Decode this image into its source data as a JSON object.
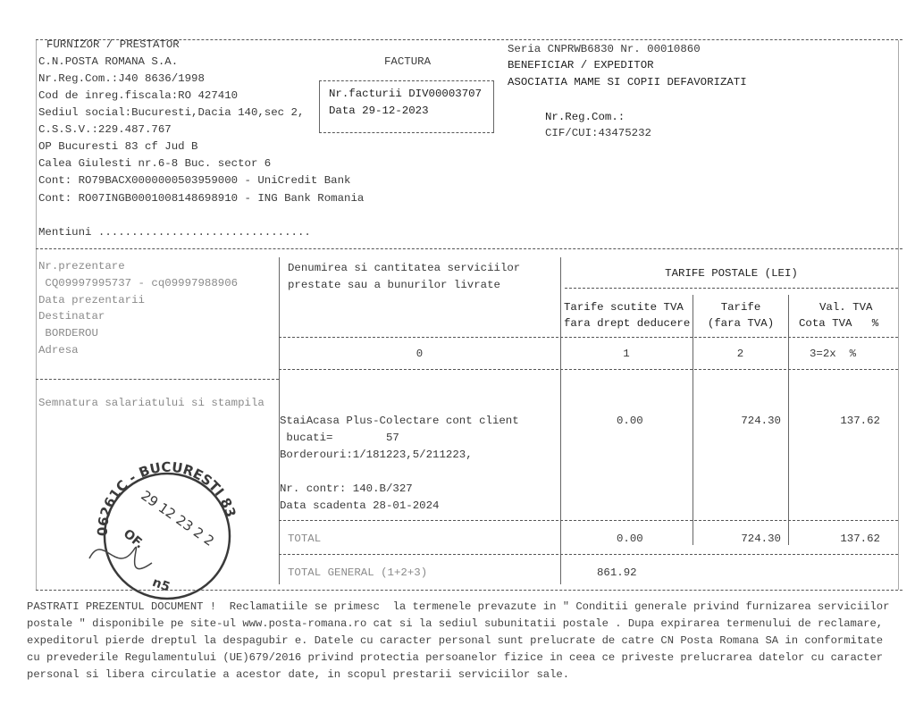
{
  "supplier": {
    "heading": "FURNIZOR / PRESTATOR",
    "lines": [
      "C.N.POSTA ROMANA S.A.",
      "Nr.Reg.Com.:J40 8636/1998",
      "Cod de inreg.fiscala:RO 427410",
      "Sediul social:Bucuresti,Dacia 140,sec 2,",
      "C.S.S.V.:229.487.767",
      "OP Bucuresti 83 cf Jud B",
      "Calea Giulesti nr.6-8 Buc. sector 6",
      "Cont: RO79BACX0000000503959000 - UniCredit Bank",
      "Cont: RO07INGB0001008148698910 - ING Bank Romania"
    ],
    "mentions": "Mentiuni ................................"
  },
  "invoice": {
    "title": "FACTURA",
    "number": "Nr.facturii DIV00003707",
    "date": "Data 29-12-2023"
  },
  "beneficiary": {
    "series": "Seria CNPRWB6830 Nr. 00010860",
    "heading": "BENEFICIAR / EXPEDITOR",
    "name": "ASOCIATIA MAME SI COPII DEFAVORIZATI",
    "reg": "Nr.Reg.Com.:",
    "cif": "CIF/CUI:43475232"
  },
  "table": {
    "left_labels": [
      "Nr.prezentare",
      " CQ09997995737 - cq09997988906",
      "Data prezentarii",
      "Destinatar",
      " BORDEROU",
      "Adresa"
    ],
    "col0_header": [
      "Denumirea si cantitatea serviciilor",
      "prestate sau a bunurilor livrate"
    ],
    "tariff_header": "TARIFE POSTALE (LEI)",
    "col1_header": [
      "Tarife scutite TVA",
      "fara drept deducere"
    ],
    "col2_header": [
      "Tarife",
      "(fara TVA)"
    ],
    "col3_header": [
      "Val. TVA",
      "Cota TVA   %"
    ],
    "col_numbers": [
      "0",
      "1",
      "2",
      "3=2x  %"
    ],
    "signature": "Semnatura salariatului si stampila",
    "service_lines": [
      "StaiAcasa Plus-Colectare cont client",
      " bucati=        57",
      "Borderouri:1/181223,5/211223,",
      "",
      "Nr. contr: 140.B/327",
      "Data scadenta 28-01-2024"
    ],
    "row_values": [
      "0.00",
      "724.30",
      "137.62"
    ],
    "total_label": "TOTAL",
    "total_values": [
      "0.00",
      "724.30",
      "137.62"
    ],
    "grand_total_label": "TOTAL GENERAL (1+2+3)",
    "grand_total_value": "861.92"
  },
  "stamp": {
    "ring": "06261C - BUCURESTI 83",
    "date": "29 12 23 2 2",
    "of": "OF.",
    "code": "n5",
    "color": "#3a3a3a"
  },
  "footer": [
    "PASTRATI PREZENTUL DOCUMENT !  Reclamatiile se primesc  la termenele prevazute in \" Conditii generale privind furnizarea serviciilor",
    "postale \" disponibile pe site-ul www.posta-romana.ro cat si la sediul subunitatii postale . Dupa expirarea termenului de reclamare,",
    "expeditorul pierde dreptul la despagubir e. Datele cu caracter personal sunt prelucrate de catre CN Posta Romana SA in conformitate",
    "cu prevederile Regulamentului (UE)679/2016 privind protectia persoanelor fizice in ceea ce priveste prelucrarea datelor cu caracter",
    "personal si libera circulatie a acestor date, in scopul prestarii serviciilor sale."
  ]
}
